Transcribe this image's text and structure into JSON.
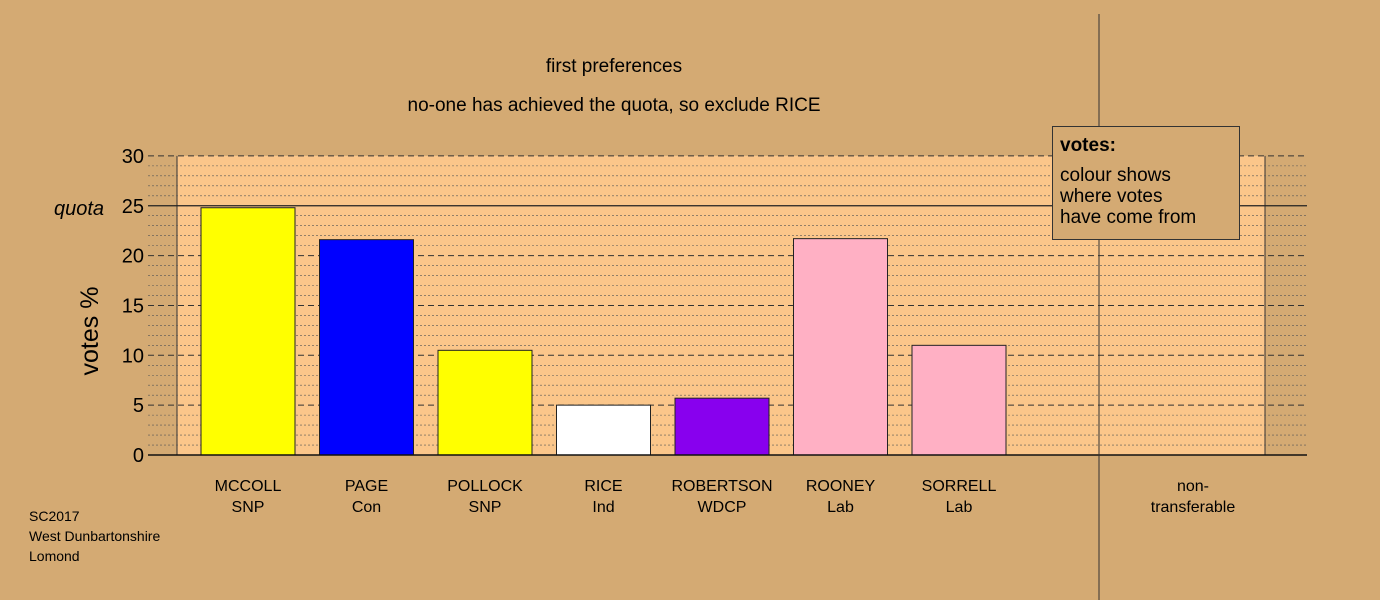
{
  "title": "first preferences",
  "subtitle": "no-one has achieved the quota, so exclude RICE",
  "legend": {
    "title": "votes:",
    "text": "colour shows\nwhere votes\nhave come from"
  },
  "footer": [
    "SC2017",
    "West Dunbartonshire",
    "Lomond"
  ],
  "colors": {
    "background": "#d4aa73",
    "plot_background": "#fbc68a",
    "SNP": "#ffff00",
    "Con": "#0000ff",
    "Ind": "#ffffff",
    "WDCP": "#8800ee",
    "Lab": "#ffb0c4"
  },
  "chart_data": {
    "type": "bar",
    "title": "first preferences",
    "subtitle": "no-one has achieved the quota, so exclude RICE",
    "ylabel": "votes %",
    "xlabel": "",
    "ylim": [
      0,
      30
    ],
    "yticks": [
      0,
      5,
      10,
      15,
      20,
      25,
      30
    ],
    "grid": true,
    "quota": 25,
    "quota_label": "quota",
    "categories": [
      {
        "name": "MCCOLL",
        "party": "SNP"
      },
      {
        "name": "PAGE",
        "party": "Con"
      },
      {
        "name": "POLLOCK",
        "party": "SNP"
      },
      {
        "name": "RICE",
        "party": "Ind"
      },
      {
        "name": "ROBERTSON",
        "party": "WDCP"
      },
      {
        "name": "ROONEY",
        "party": "Lab"
      },
      {
        "name": "SORRELL",
        "party": "Lab"
      }
    ],
    "values": [
      24.8,
      21.6,
      10.5,
      5.0,
      5.7,
      21.7,
      11.0
    ],
    "non_transferable_label": "non-\ntransferable",
    "non_transferable_value": 0
  }
}
